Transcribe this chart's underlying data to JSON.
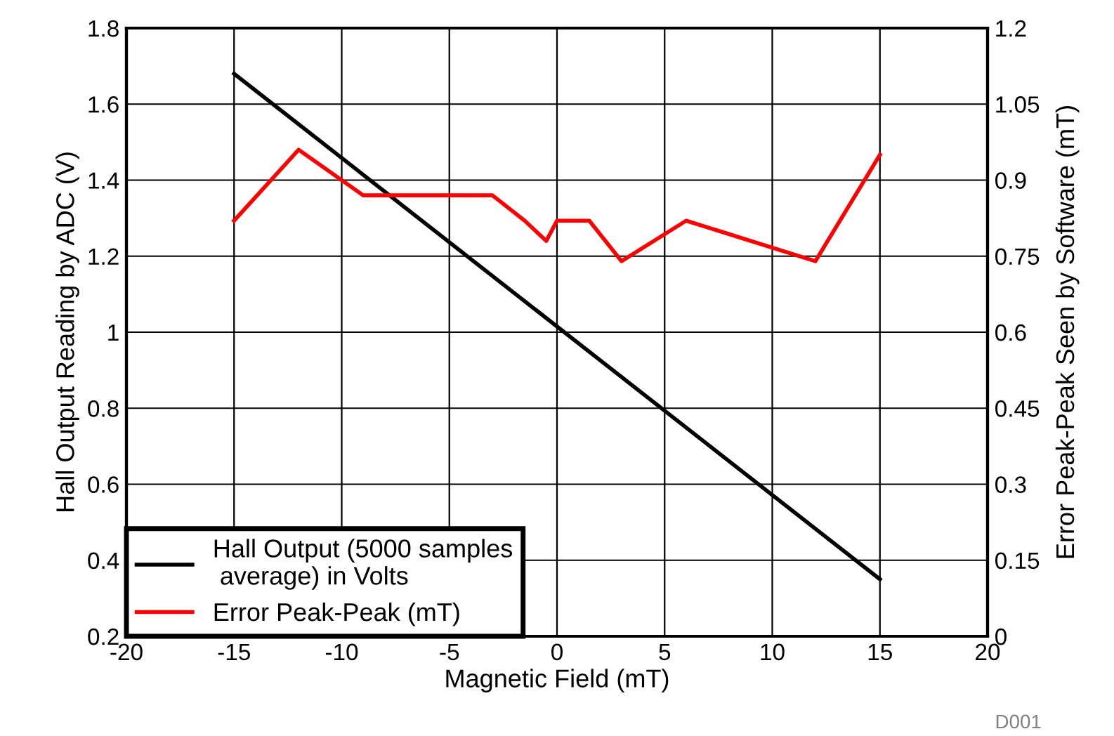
{
  "chart_data": {
    "type": "line",
    "xlabel": "Magnetic Field (mT)",
    "ylabel": "Hall Output Reading by ADC (V)",
    "y2label": "Error Peak-Peak Seen by Software (mT)",
    "series": [
      {
        "name": "Hall Output (5000 samples\n average) in Volts",
        "color": "#000000",
        "x": [
          -15,
          15
        ],
        "values": [
          1.68,
          0.35
        ]
      },
      {
        "name": "Error Peak-Peak (mT)",
        "color": "#ff0000",
        "axis": "y2",
        "x": [
          -15,
          -12,
          -9,
          -3,
          -1.5,
          -0.5,
          0,
          1.5,
          3,
          6,
          12,
          15
        ],
        "values": [
          0.82,
          0.96,
          0.87,
          0.87,
          0.82,
          0.78,
          0.82,
          0.82,
          0.74,
          0.82,
          0.74,
          0.95
        ]
      }
    ],
    "xlim": [
      -20,
      20
    ],
    "xticks": [
      -20,
      -15,
      -10,
      -5,
      0,
      5,
      10,
      15,
      20
    ],
    "ylim": [
      0.2,
      1.8
    ],
    "yticks": [
      0.2,
      0.4,
      0.6,
      0.8,
      1,
      1.2,
      1.4,
      1.6,
      1.8
    ],
    "y2lim": [
      0,
      1.2
    ],
    "y2ticks": [
      0,
      0.15,
      0.3,
      0.45,
      0.6,
      0.75,
      0.9,
      1.05,
      1.2
    ],
    "grid": true,
    "legend": "bottom left",
    "marker": "none",
    "line_style": "solid",
    "annotations": [
      "D001"
    ]
  }
}
